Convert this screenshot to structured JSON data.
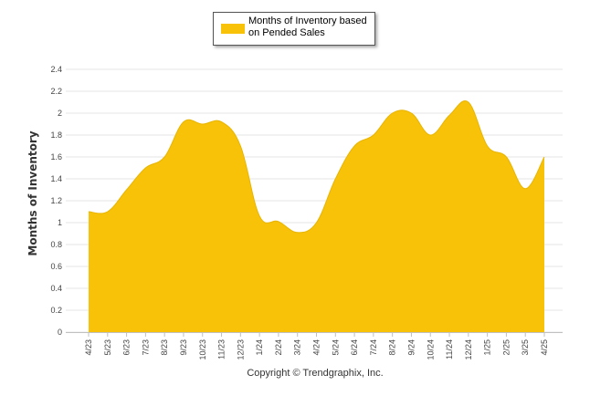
{
  "chart_data": {
    "type": "area",
    "ylabel": "Months of Inventory",
    "ylim": [
      0,
      2.4
    ],
    "yticks": [
      "0",
      "0.2",
      "0.4",
      "0.6",
      "0.8",
      "1",
      "1.2",
      "1.4",
      "1.6",
      "1.8",
      "2",
      "2.2",
      "2.4"
    ],
    "categories": [
      "4/23",
      "5/23",
      "6/23",
      "7/23",
      "8/23",
      "9/23",
      "10/23",
      "11/23",
      "12/23",
      "1/24",
      "2/24",
      "3/24",
      "4/24",
      "5/24",
      "6/24",
      "7/24",
      "8/24",
      "9/24",
      "10/24",
      "11/24",
      "12/24",
      "1/25",
      "2/25",
      "3/25",
      "4/25"
    ],
    "series": [
      {
        "name": "Months of Inventory based on Pended Sales",
        "color": "#f7c208",
        "values": [
          1.1,
          1.1,
          1.3,
          1.5,
          1.6,
          1.92,
          1.9,
          1.92,
          1.7,
          1.06,
          1.01,
          0.91,
          1.0,
          1.4,
          1.7,
          1.8,
          2.0,
          2.0,
          1.8,
          1.98,
          2.1,
          1.7,
          1.6,
          1.31,
          1.6
        ]
      }
    ],
    "grid": true,
    "legend_position": "top"
  },
  "footer": {
    "copyright": "Copyright © Trendgraphix, Inc."
  }
}
